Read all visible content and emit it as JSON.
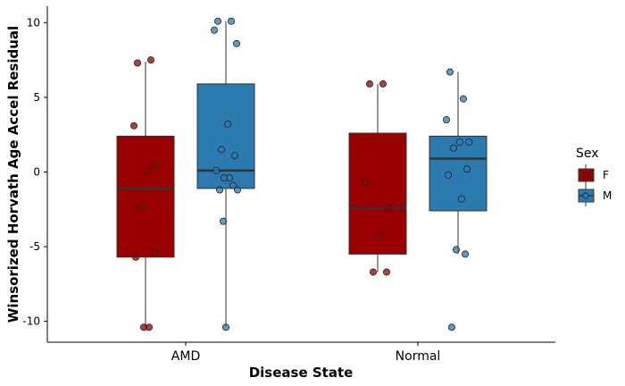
{
  "chart_data": {
    "type": "box",
    "xlabel": "Disease State",
    "ylabel": "Winsorized Horvath Age Accel Residual",
    "categories": [
      "AMD",
      "Normal"
    ],
    "ylim": [
      -11.4,
      11.1
    ],
    "yticks": [
      -10,
      -5,
      0,
      5,
      10
    ],
    "grid": false,
    "legend": {
      "title": "Sex",
      "position": "right"
    },
    "series": [
      {
        "name": "F",
        "color": "#990000",
        "boxes": [
          {
            "category": "AMD",
            "q1": -5.7,
            "median": -1.1,
            "q3": 2.4,
            "whisker_low": -10.4,
            "whisker_high": 7.4,
            "points": [
              7.3,
              7.5,
              3.1,
              0.4,
              0.1,
              -2.4,
              -5.4,
              -5.7,
              -10.4,
              -10.4
            ]
          },
          {
            "category": "Normal",
            "q1": -5.5,
            "median": -2.4,
            "q3": 2.6,
            "whisker_low": -6.7,
            "whisker_high": 5.9,
            "points": [
              5.9,
              5.9,
              -0.7,
              -2.4,
              -4.2,
              -6.7,
              -6.7
            ]
          }
        ]
      },
      {
        "name": "M",
        "color": "#2c7bb0",
        "boxes": [
          {
            "category": "AMD",
            "q1": -1.1,
            "median": 0.1,
            "q3": 5.9,
            "whisker_low": -10.4,
            "whisker_high": 10.1,
            "points": [
              10.1,
              10.1,
              9.5,
              8.6,
              3.2,
              1.5,
              1.1,
              0.1,
              -0.4,
              -0.4,
              -0.9,
              -1.2,
              -1.2,
              -3.3,
              -10.4
            ]
          },
          {
            "category": "Normal",
            "q1": -2.6,
            "median": 0.9,
            "q3": 2.4,
            "whisker_low": -5.5,
            "whisker_high": 6.7,
            "points": [
              6.7,
              4.9,
              3.5,
              2.0,
              2.0,
              1.6,
              0.2,
              -0.2,
              -1.8,
              -5.2,
              -5.5,
              -10.4
            ]
          }
        ]
      }
    ]
  }
}
